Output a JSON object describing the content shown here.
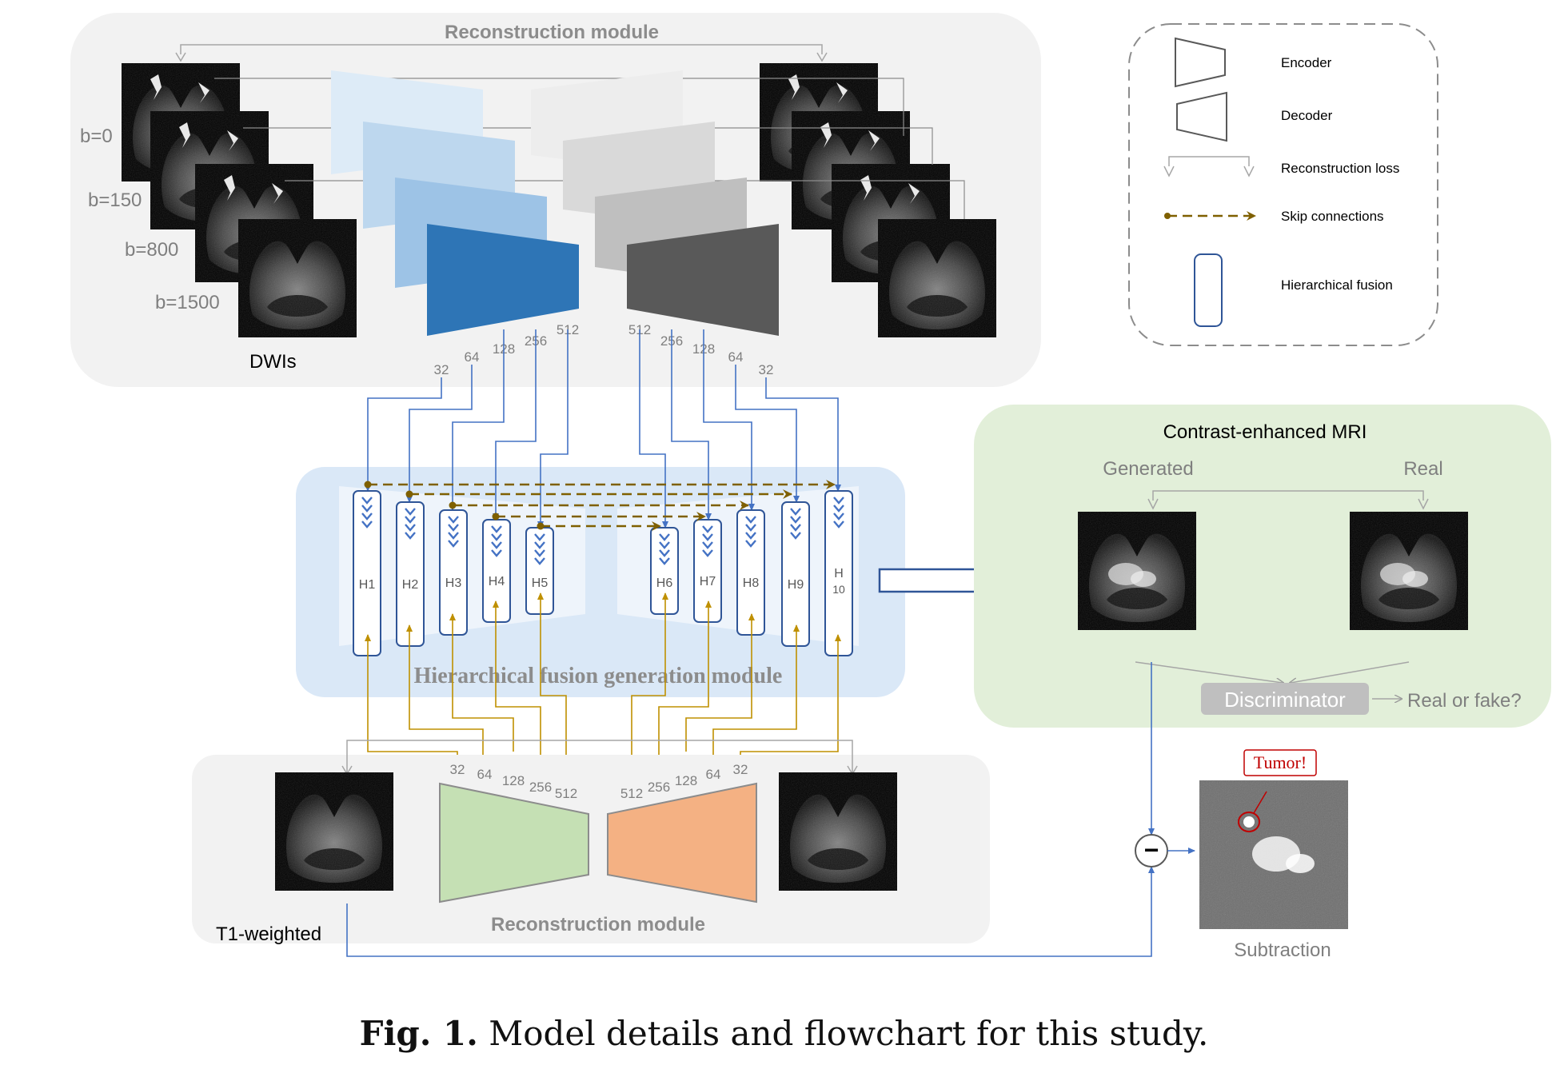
{
  "top_module": {
    "title": "Reconstruction module",
    "b_values": [
      "b=0",
      "b=150",
      "b=800",
      "b=1500"
    ],
    "input_label": "DWIs",
    "encoder_channels": [
      "32",
      "64",
      "128",
      "256",
      "512"
    ],
    "decoder_channels": [
      "512",
      "256",
      "128",
      "64",
      "32"
    ]
  },
  "legend": {
    "encoder": "Encoder",
    "decoder": "Decoder",
    "recon_loss": "Reconstruction loss",
    "skip": "Skip connections",
    "fusion": "Hierarchical fusion"
  },
  "fusion_module": {
    "title": "Hierarchical fusion generation module",
    "blocks": [
      "H1",
      "H2",
      "H3",
      "H4",
      "H5",
      "H6",
      "H7",
      "H8",
      "H9"
    ],
    "block10_top": "H",
    "block10_bottom": "10"
  },
  "cemri": {
    "title": "Contrast-enhanced MRI",
    "generated": "Generated",
    "real": "Real",
    "discriminator": "Discriminator",
    "output": "Real or fake?"
  },
  "bottom_module": {
    "title": "Reconstruction module",
    "input_label": "T1-weighted",
    "encoder_channels": [
      "32",
      "64",
      "128",
      "256",
      "512"
    ],
    "decoder_channels": [
      "512",
      "256",
      "128",
      "64",
      "32"
    ]
  },
  "subtraction": {
    "label": "Subtraction",
    "tumor": "Tumor!",
    "minus": "−"
  },
  "caption": {
    "label": "Fig. 1.",
    "text": "Model details and flowchart for this study."
  },
  "colors": {
    "enc_top": "#2e75b6",
    "dec_top": "#595959",
    "enc_bottom": "#c5e0b4",
    "dec_bottom": "#f4b183",
    "skip": "#7f6000",
    "t1_path": "#bf9000",
    "dwi_path": "#4472c4"
  }
}
